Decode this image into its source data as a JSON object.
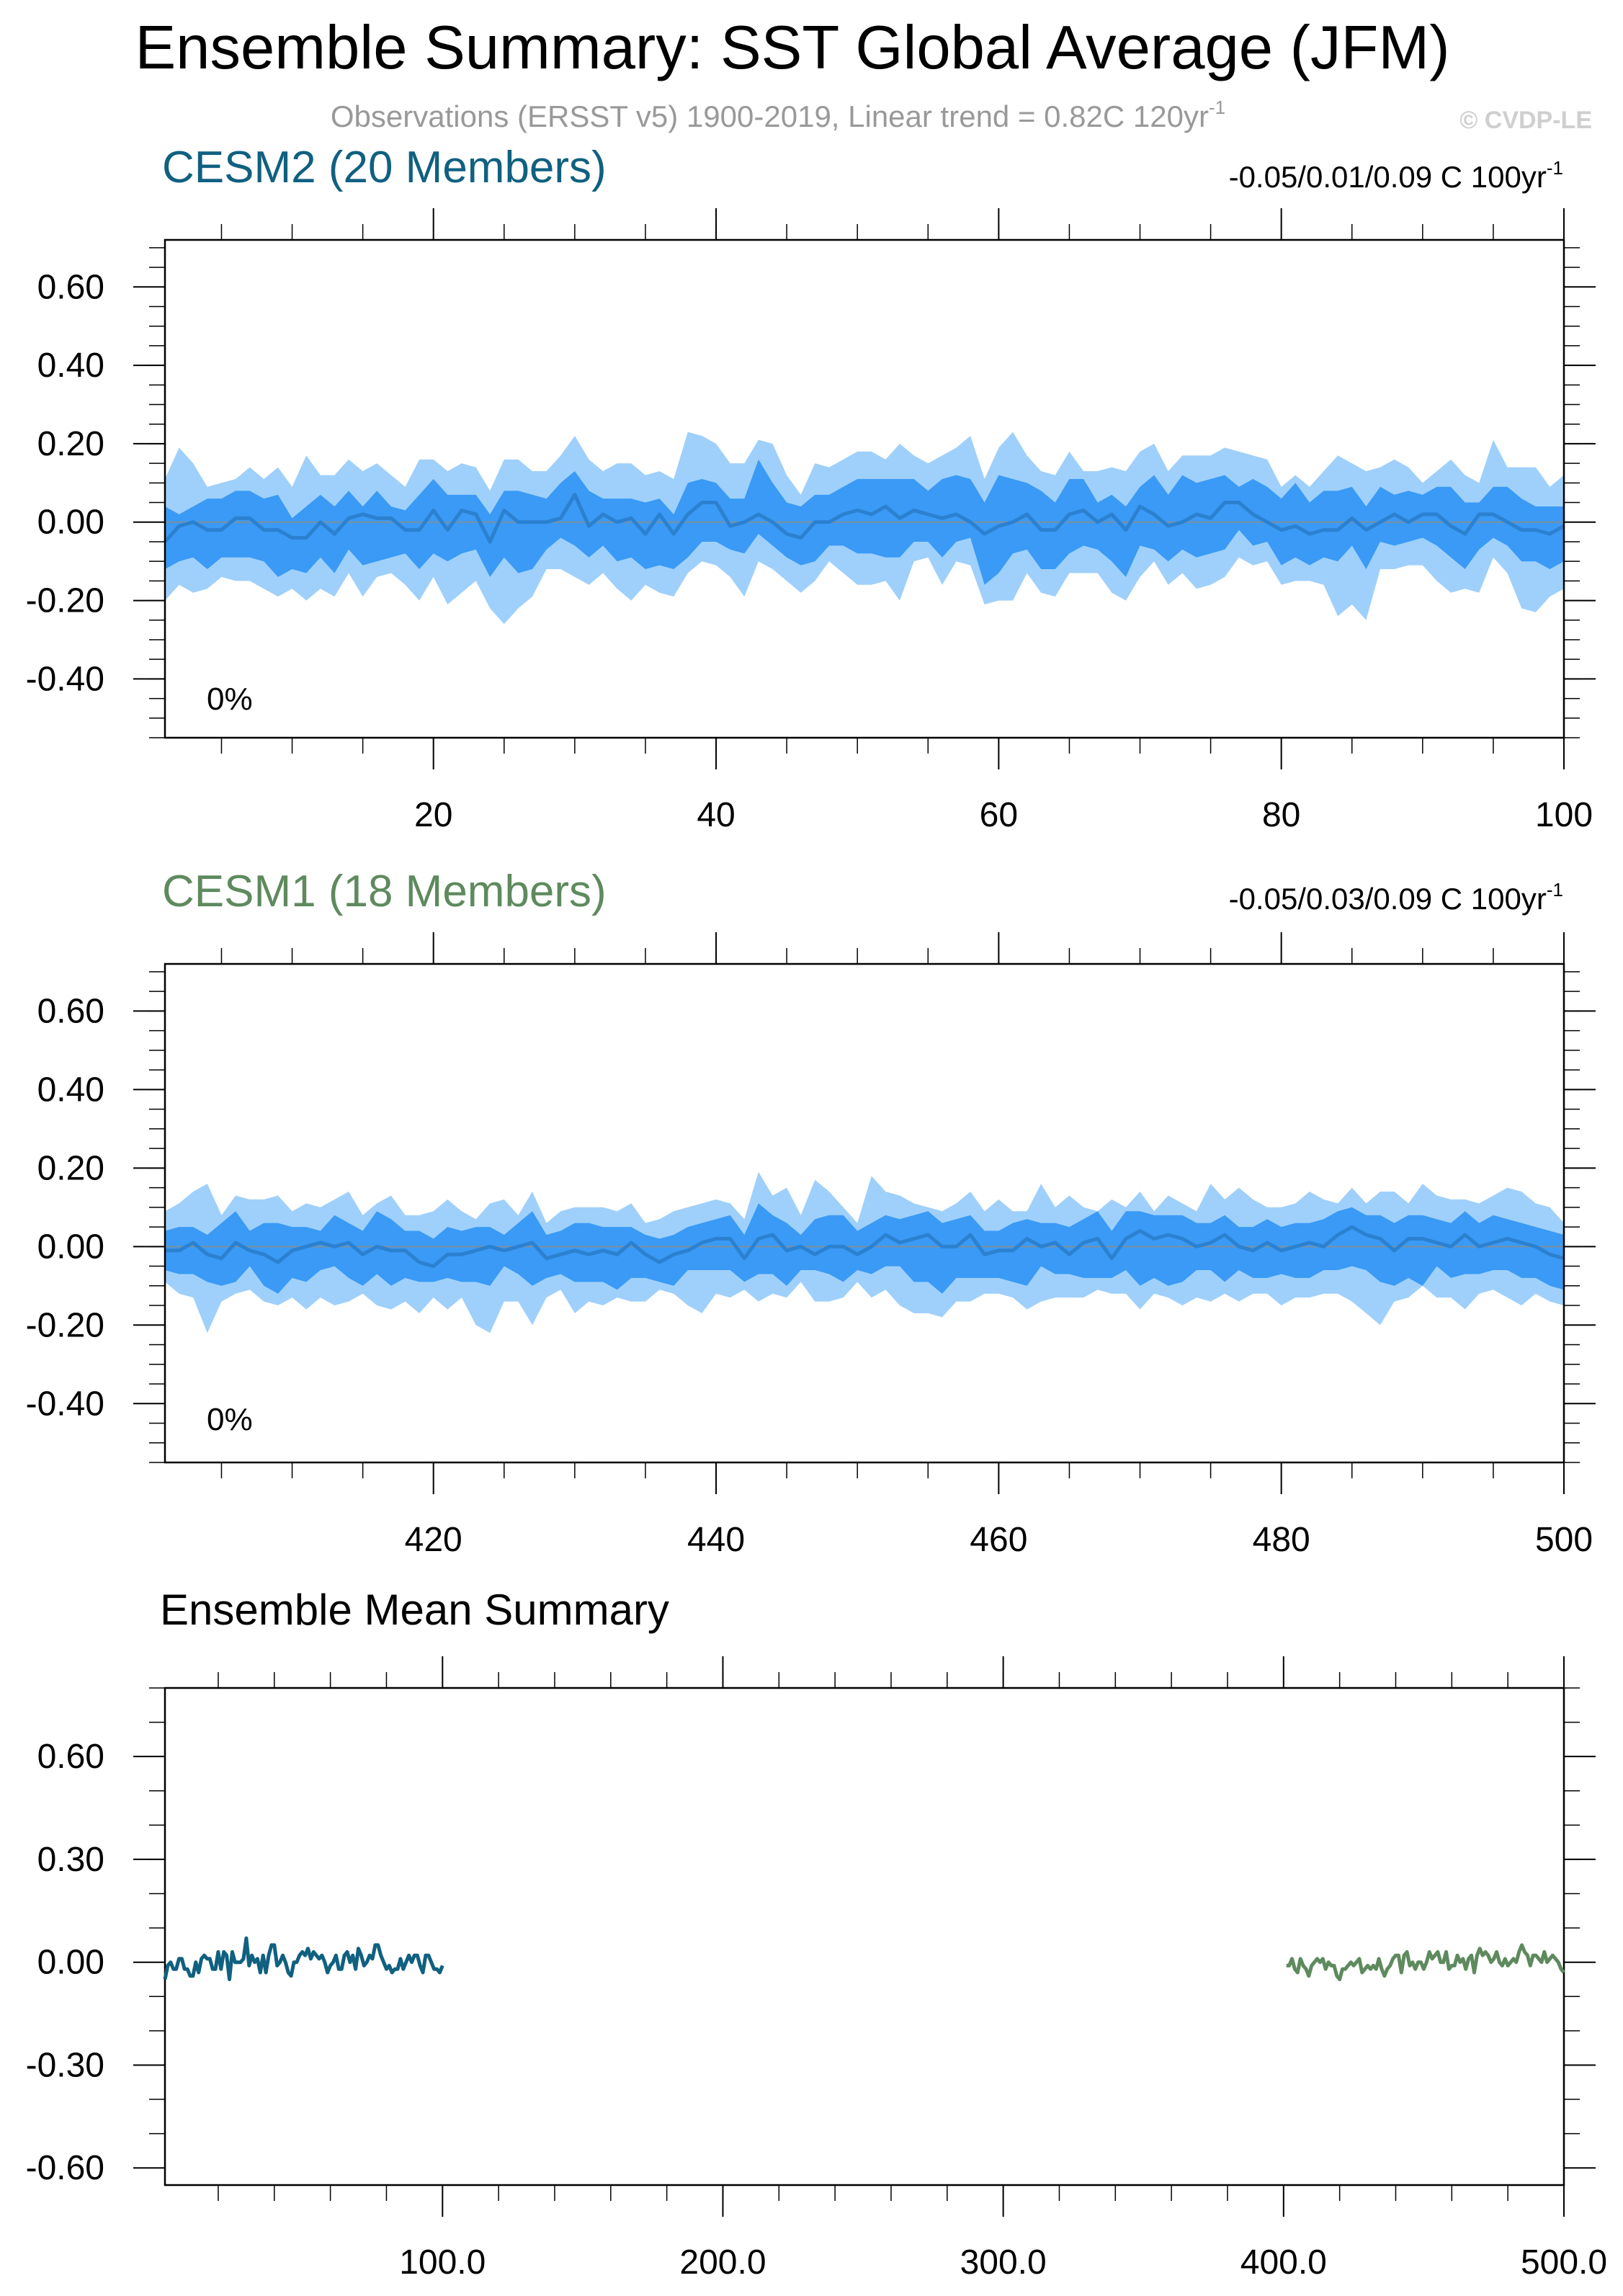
{
  "figure": {
    "title": "Ensemble Summary: SST Global Average (JFM)",
    "subtitle": "Observations (ERSST v5) 1900-2019, Linear trend = 0.82C 120yr",
    "subtitle_sup": "-1",
    "copyright": "© CVDP-LE"
  },
  "colors": {
    "cesm2": "#106080",
    "cesm1": "#5e8a5e",
    "band_outer": "#9fd0fb",
    "band_inner": "#3a9af5",
    "mean_line": "#2b80d0",
    "frame": "#000000",
    "subtitle": "#999999",
    "copyright": "#cfcfcf"
  },
  "chart_data": [
    {
      "type": "area",
      "id": "cesm2",
      "title": "CESM2 (20 Members)",
      "trend_label": "-0.05/0.01/0.09 C 100yr",
      "trend_sup": "-1",
      "percent_label": "0%",
      "xlim": [
        1,
        100
      ],
      "ylim": [
        -0.55,
        0.72
      ],
      "xticks": [
        20,
        40,
        60,
        80,
        100
      ],
      "yticks": [
        0.6,
        0.4,
        0.2,
        0.0,
        -0.2,
        -0.4
      ],
      "ytick_labels": [
        "0.60",
        "0.40",
        "0.20",
        "0.00",
        "-0.20",
        "-0.40"
      ],
      "x_start": 1,
      "mean": [
        -0.05,
        -0.01,
        0.0,
        -0.02,
        -0.02,
        0.01,
        0.01,
        -0.02,
        -0.02,
        -0.04,
        -0.04,
        0.0,
        -0.03,
        0.01,
        0.02,
        0.01,
        0.01,
        -0.02,
        -0.02,
        0.03,
        -0.02,
        0.03,
        0.02,
        -0.05,
        0.03,
        0.0,
        0.0,
        0.0,
        0.01,
        0.07,
        -0.01,
        0.02,
        0.0,
        0.01,
        -0.03,
        0.02,
        -0.03,
        0.02,
        0.05,
        0.05,
        -0.01,
        0.0,
        0.02,
        0.0,
        -0.03,
        -0.04,
        0.0,
        0.0,
        0.02,
        0.03,
        0.02,
        0.04,
        0.01,
        0.03,
        0.02,
        0.01,
        0.02,
        0.0,
        -0.03,
        -0.01,
        0.0,
        0.02,
        -0.02,
        -0.02,
        0.02,
        0.03,
        0.0,
        0.02,
        -0.02,
        0.04,
        0.02,
        -0.01,
        0.0,
        0.02,
        0.01,
        0.05,
        0.05,
        0.02,
        0.0,
        -0.02,
        -0.01,
        -0.03,
        -0.02,
        -0.02,
        0.01,
        -0.02,
        0.0,
        0.02,
        0.0,
        0.02,
        0.02,
        -0.01,
        -0.03,
        0.02,
        0.02,
        0.0,
        -0.02,
        -0.02,
        -0.03,
        -0.01
      ],
      "inner_lo": [
        -0.12,
        -0.1,
        -0.09,
        -0.12,
        -0.09,
        -0.09,
        -0.09,
        -0.1,
        -0.14,
        -0.12,
        -0.13,
        -0.09,
        -0.13,
        -0.07,
        -0.11,
        -0.1,
        -0.09,
        -0.08,
        -0.12,
        -0.08,
        -0.1,
        -0.08,
        -0.07,
        -0.14,
        -0.09,
        -0.13,
        -0.12,
        -0.07,
        -0.04,
        -0.06,
        -0.09,
        -0.06,
        -0.1,
        -0.09,
        -0.12,
        -0.11,
        -0.12,
        -0.09,
        -0.05,
        -0.05,
        -0.07,
        -0.08,
        -0.03,
        -0.06,
        -0.09,
        -0.11,
        -0.1,
        -0.06,
        -0.06,
        -0.08,
        -0.08,
        -0.09,
        -0.09,
        -0.05,
        -0.05,
        -0.09,
        -0.05,
        -0.04,
        -0.16,
        -0.13,
        -0.08,
        -0.07,
        -0.12,
        -0.12,
        -0.08,
        -0.06,
        -0.07,
        -0.1,
        -0.14,
        -0.06,
        -0.07,
        -0.1,
        -0.07,
        -0.09,
        -0.08,
        -0.07,
        -0.02,
        -0.06,
        -0.05,
        -0.11,
        -0.09,
        -0.11,
        -0.09,
        -0.1,
        -0.06,
        -0.12,
        -0.05,
        -0.06,
        -0.05,
        -0.04,
        -0.06,
        -0.09,
        -0.12,
        -0.07,
        -0.04,
        -0.06,
        -0.1,
        -0.1,
        -0.12,
        -0.1
      ],
      "inner_hi": [
        0.04,
        0.02,
        0.04,
        0.06,
        0.06,
        0.08,
        0.08,
        0.06,
        0.07,
        0.01,
        0.04,
        0.07,
        0.04,
        0.08,
        0.04,
        0.08,
        0.04,
        0.03,
        0.07,
        0.11,
        0.07,
        0.07,
        0.07,
        0.02,
        0.08,
        0.08,
        0.07,
        0.06,
        0.1,
        0.13,
        0.08,
        0.06,
        0.06,
        0.06,
        0.05,
        0.06,
        0.02,
        0.1,
        0.11,
        0.1,
        0.06,
        0.06,
        0.16,
        0.1,
        0.05,
        0.04,
        0.07,
        0.07,
        0.09,
        0.11,
        0.11,
        0.11,
        0.11,
        0.11,
        0.08,
        0.11,
        0.12,
        0.11,
        0.05,
        0.12,
        0.11,
        0.1,
        0.08,
        0.05,
        0.11,
        0.11,
        0.05,
        0.07,
        0.04,
        0.09,
        0.12,
        0.07,
        0.12,
        0.1,
        0.11,
        0.12,
        0.09,
        0.11,
        0.09,
        0.06,
        0.1,
        0.05,
        0.08,
        0.08,
        0.09,
        0.04,
        0.09,
        0.07,
        0.08,
        0.07,
        0.09,
        0.09,
        0.05,
        0.05,
        0.09,
        0.09,
        0.06,
        0.04,
        0.04,
        0.04
      ],
      "outer_lo": [
        -0.2,
        -0.16,
        -0.18,
        -0.17,
        -0.14,
        -0.15,
        -0.15,
        -0.17,
        -0.19,
        -0.17,
        -0.2,
        -0.17,
        -0.19,
        -0.13,
        -0.19,
        -0.14,
        -0.13,
        -0.16,
        -0.2,
        -0.14,
        -0.21,
        -0.18,
        -0.15,
        -0.22,
        -0.26,
        -0.22,
        -0.19,
        -0.12,
        -0.12,
        -0.14,
        -0.16,
        -0.13,
        -0.17,
        -0.2,
        -0.16,
        -0.18,
        -0.19,
        -0.13,
        -0.1,
        -0.11,
        -0.14,
        -0.19,
        -0.1,
        -0.12,
        -0.15,
        -0.18,
        -0.15,
        -0.1,
        -0.13,
        -0.16,
        -0.16,
        -0.15,
        -0.2,
        -0.1,
        -0.09,
        -0.16,
        -0.1,
        -0.11,
        -0.21,
        -0.2,
        -0.2,
        -0.13,
        -0.18,
        -0.19,
        -0.13,
        -0.13,
        -0.13,
        -0.18,
        -0.2,
        -0.14,
        -0.1,
        -0.16,
        -0.13,
        -0.17,
        -0.16,
        -0.14,
        -0.09,
        -0.11,
        -0.1,
        -0.16,
        -0.15,
        -0.15,
        -0.16,
        -0.24,
        -0.21,
        -0.25,
        -0.12,
        -0.12,
        -0.11,
        -0.11,
        -0.15,
        -0.18,
        -0.17,
        -0.18,
        -0.09,
        -0.13,
        -0.22,
        -0.23,
        -0.19,
        -0.17
      ],
      "outer_hi": [
        0.11,
        0.19,
        0.15,
        0.09,
        0.1,
        0.11,
        0.14,
        0.11,
        0.14,
        0.09,
        0.17,
        0.12,
        0.12,
        0.16,
        0.13,
        0.15,
        0.12,
        0.09,
        0.16,
        0.16,
        0.13,
        0.15,
        0.14,
        0.08,
        0.16,
        0.16,
        0.13,
        0.13,
        0.17,
        0.22,
        0.16,
        0.13,
        0.15,
        0.15,
        0.12,
        0.13,
        0.11,
        0.23,
        0.22,
        0.2,
        0.15,
        0.15,
        0.21,
        0.2,
        0.12,
        0.07,
        0.15,
        0.14,
        0.16,
        0.18,
        0.18,
        0.16,
        0.2,
        0.17,
        0.15,
        0.17,
        0.19,
        0.22,
        0.11,
        0.19,
        0.23,
        0.17,
        0.13,
        0.12,
        0.18,
        0.13,
        0.13,
        0.14,
        0.13,
        0.18,
        0.2,
        0.13,
        0.17,
        0.17,
        0.17,
        0.19,
        0.18,
        0.17,
        0.16,
        0.09,
        0.12,
        0.09,
        0.13,
        0.17,
        0.15,
        0.13,
        0.14,
        0.16,
        0.14,
        0.1,
        0.13,
        0.16,
        0.12,
        0.1,
        0.21,
        0.14,
        0.14,
        0.14,
        0.09,
        0.12
      ]
    },
    {
      "type": "area",
      "id": "cesm1",
      "title": "CESM1 (18 Members)",
      "trend_label": "-0.05/0.03/0.09 C 100yr",
      "trend_sup": "-1",
      "percent_label": "0%",
      "xlim": [
        401,
        500
      ],
      "ylim": [
        -0.55,
        0.72
      ],
      "xticks": [
        420,
        440,
        460,
        480,
        500
      ],
      "yticks": [
        0.6,
        0.4,
        0.2,
        0.0,
        -0.2,
        -0.4
      ],
      "ytick_labels": [
        "0.60",
        "0.40",
        "0.20",
        "0.00",
        "-0.20",
        "-0.40"
      ],
      "x_start": 401,
      "mean": [
        -0.01,
        -0.01,
        0.01,
        -0.02,
        -0.03,
        0.01,
        -0.01,
        -0.02,
        -0.04,
        -0.01,
        0.0,
        0.01,
        0.0,
        0.01,
        -0.02,
        0.0,
        -0.01,
        -0.01,
        -0.04,
        -0.05,
        -0.02,
        -0.02,
        -0.01,
        0.0,
        -0.01,
        0.0,
        0.01,
        -0.03,
        -0.02,
        -0.01,
        -0.02,
        -0.01,
        -0.02,
        0.01,
        -0.02,
        -0.04,
        -0.02,
        -0.01,
        0.01,
        0.02,
        0.02,
        -0.03,
        0.02,
        0.03,
        -0.01,
        0.0,
        -0.02,
        0.0,
        0.0,
        -0.02,
        0.0,
        0.03,
        0.01,
        0.02,
        0.03,
        0.0,
        0.0,
        0.03,
        -0.02,
        -0.01,
        -0.01,
        0.02,
        0.0,
        0.01,
        -0.02,
        0.01,
        0.02,
        -0.03,
        0.02,
        0.04,
        0.02,
        0.03,
        0.02,
        0.0,
        0.01,
        0.03,
        0.0,
        -0.01,
        0.01,
        -0.01,
        0.0,
        0.01,
        0.0,
        0.03,
        0.05,
        0.03,
        0.02,
        -0.01,
        0.02,
        0.02,
        0.01,
        0.0,
        0.03,
        0.0,
        0.01,
        0.02,
        0.01,
        0.0,
        -0.02,
        -0.03
      ],
      "inner_lo": [
        -0.06,
        -0.07,
        -0.07,
        -0.09,
        -0.1,
        -0.09,
        -0.05,
        -0.1,
        -0.12,
        -0.08,
        -0.09,
        -0.06,
        -0.05,
        -0.08,
        -0.1,
        -0.07,
        -0.1,
        -0.08,
        -0.09,
        -0.09,
        -0.08,
        -0.09,
        -0.09,
        -0.1,
        -0.05,
        -0.07,
        -0.1,
        -0.08,
        -0.07,
        -0.09,
        -0.09,
        -0.09,
        -0.11,
        -0.08,
        -0.08,
        -0.09,
        -0.1,
        -0.06,
        -0.06,
        -0.06,
        -0.06,
        -0.09,
        -0.07,
        -0.07,
        -0.1,
        -0.06,
        -0.06,
        -0.07,
        -0.09,
        -0.06,
        -0.07,
        -0.05,
        -0.05,
        -0.09,
        -0.09,
        -0.12,
        -0.08,
        -0.08,
        -0.08,
        -0.08,
        -0.09,
        -0.1,
        -0.05,
        -0.07,
        -0.07,
        -0.08,
        -0.08,
        -0.08,
        -0.06,
        -0.1,
        -0.08,
        -0.1,
        -0.09,
        -0.06,
        -0.06,
        -0.09,
        -0.06,
        -0.08,
        -0.08,
        -0.07,
        -0.08,
        -0.08,
        -0.06,
        -0.06,
        -0.05,
        -0.06,
        -0.09,
        -0.1,
        -0.08,
        -0.1,
        -0.05,
        -0.08,
        -0.07,
        -0.07,
        -0.06,
        -0.06,
        -0.08,
        -0.08,
        -0.1,
        -0.11
      ],
      "inner_hi": [
        0.04,
        0.05,
        0.05,
        0.03,
        0.06,
        0.09,
        0.04,
        0.06,
        0.06,
        0.05,
        0.05,
        0.04,
        0.08,
        0.06,
        0.04,
        0.09,
        0.07,
        0.04,
        0.04,
        0.02,
        0.05,
        0.04,
        0.05,
        0.05,
        0.03,
        0.06,
        0.09,
        0.03,
        0.04,
        0.06,
        0.06,
        0.05,
        0.05,
        0.05,
        0.03,
        0.02,
        0.03,
        0.05,
        0.06,
        0.07,
        0.08,
        0.03,
        0.11,
        0.08,
        0.06,
        0.03,
        0.07,
        0.08,
        0.08,
        0.04,
        0.06,
        0.08,
        0.07,
        0.08,
        0.09,
        0.06,
        0.07,
        0.08,
        0.04,
        0.04,
        0.06,
        0.07,
        0.06,
        0.06,
        0.05,
        0.07,
        0.09,
        0.04,
        0.09,
        0.09,
        0.08,
        0.08,
        0.08,
        0.06,
        0.06,
        0.08,
        0.05,
        0.05,
        0.07,
        0.05,
        0.06,
        0.06,
        0.07,
        0.09,
        0.1,
        0.08,
        0.08,
        0.06,
        0.08,
        0.08,
        0.07,
        0.06,
        0.09,
        0.06,
        0.08,
        0.07,
        0.06,
        0.05,
        0.04,
        0.03
      ],
      "outer_lo": [
        -0.09,
        -0.12,
        -0.13,
        -0.22,
        -0.14,
        -0.12,
        -0.11,
        -0.14,
        -0.15,
        -0.13,
        -0.16,
        -0.13,
        -0.15,
        -0.14,
        -0.12,
        -0.15,
        -0.16,
        -0.14,
        -0.17,
        -0.13,
        -0.16,
        -0.13,
        -0.2,
        -0.22,
        -0.14,
        -0.14,
        -0.2,
        -0.13,
        -0.11,
        -0.17,
        -0.14,
        -0.15,
        -0.13,
        -0.14,
        -0.14,
        -0.11,
        -0.12,
        -0.15,
        -0.17,
        -0.12,
        -0.13,
        -0.11,
        -0.14,
        -0.12,
        -0.13,
        -0.09,
        -0.14,
        -0.14,
        -0.13,
        -0.09,
        -0.13,
        -0.11,
        -0.15,
        -0.17,
        -0.17,
        -0.18,
        -0.14,
        -0.14,
        -0.12,
        -0.12,
        -0.13,
        -0.16,
        -0.14,
        -0.13,
        -0.13,
        -0.13,
        -0.11,
        -0.12,
        -0.12,
        -0.16,
        -0.12,
        -0.13,
        -0.15,
        -0.13,
        -0.14,
        -0.12,
        -0.14,
        -0.12,
        -0.12,
        -0.15,
        -0.13,
        -0.13,
        -0.12,
        -0.12,
        -0.14,
        -0.17,
        -0.2,
        -0.14,
        -0.13,
        -0.1,
        -0.13,
        -0.13,
        -0.16,
        -0.12,
        -0.11,
        -0.13,
        -0.15,
        -0.12,
        -0.14,
        -0.15
      ],
      "outer_hi": [
        0.09,
        0.11,
        0.14,
        0.16,
        0.08,
        0.13,
        0.12,
        0.12,
        0.13,
        0.09,
        0.11,
        0.1,
        0.12,
        0.14,
        0.08,
        0.11,
        0.13,
        0.08,
        0.08,
        0.09,
        0.12,
        0.09,
        0.07,
        0.11,
        0.12,
        0.08,
        0.14,
        0.06,
        0.09,
        0.1,
        0.1,
        0.1,
        0.09,
        0.11,
        0.06,
        0.07,
        0.09,
        0.1,
        0.11,
        0.12,
        0.11,
        0.07,
        0.19,
        0.13,
        0.15,
        0.08,
        0.17,
        0.14,
        0.1,
        0.06,
        0.18,
        0.14,
        0.13,
        0.11,
        0.1,
        0.09,
        0.11,
        0.14,
        0.09,
        0.12,
        0.09,
        0.09,
        0.16,
        0.1,
        0.13,
        0.1,
        0.09,
        0.12,
        0.1,
        0.14,
        0.09,
        0.13,
        0.11,
        0.09,
        0.16,
        0.12,
        0.15,
        0.12,
        0.1,
        0.1,
        0.11,
        0.14,
        0.12,
        0.11,
        0.15,
        0.11,
        0.14,
        0.14,
        0.11,
        0.16,
        0.13,
        0.12,
        0.12,
        0.11,
        0.13,
        0.15,
        0.14,
        0.11,
        0.1,
        0.06
      ]
    },
    {
      "type": "line",
      "id": "ensemble_mean",
      "title": "Ensemble Mean Summary",
      "xlim": [
        1,
        500
      ],
      "ylim": [
        -0.65,
        0.8
      ],
      "xticks": [
        100,
        200,
        300,
        400,
        500
      ],
      "xtick_labels": [
        "100.0",
        "200.0",
        "300.0",
        "400.0",
        "500.0"
      ],
      "yticks": [
        0.6,
        0.3,
        0.0,
        -0.3,
        -0.6
      ],
      "ytick_labels": [
        "0.60",
        "0.30",
        "0.00",
        "-0.30",
        "-0.60"
      ],
      "series": [
        {
          "ref": "cesm2",
          "x_start": 1
        },
        {
          "ref": "cesm1",
          "x_start": 401
        }
      ]
    }
  ]
}
